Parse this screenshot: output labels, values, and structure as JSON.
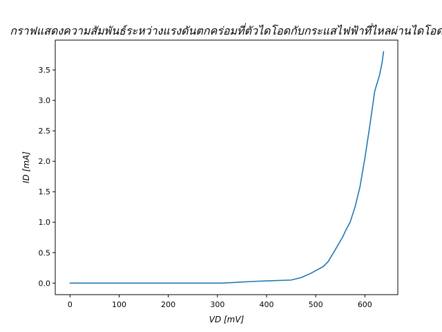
{
  "chart_data": {
    "type": "line",
    "title": "กราฟแสดงความสัมพันธ์ระหว่างแรงดันตกคร่อมที่ตัวไดโอดกับกระแสไฟฟ้าที่ไหลผ่านไดโอด",
    "xlabel": "VD [mV]",
    "ylabel": "ID [mA]",
    "xlim": [
      -30,
      667
    ],
    "ylim": [
      -0.19,
      3.99
    ],
    "xticks": [
      0,
      100,
      200,
      300,
      400,
      500,
      600
    ],
    "xtick_labels": [
      "0",
      "100",
      "200",
      "300",
      "400",
      "500",
      "600"
    ],
    "yticks": [
      0.0,
      0.5,
      1.0,
      1.5,
      2.0,
      2.5,
      3.0,
      3.5
    ],
    "ytick_labels": [
      "0.0",
      "0.5",
      "1.0",
      "1.5",
      "2.0",
      "2.5",
      "3.0",
      "3.5"
    ],
    "grid": false,
    "color": "#1f77b4",
    "series": [
      {
        "x": [
          0,
          100,
          200,
          310,
          380,
          450,
          470,
          490,
          515,
          525,
          540,
          555,
          562,
          570,
          580,
          590,
          600,
          610,
          620,
          630,
          635,
          638
        ],
        "y": [
          0.0,
          0.0,
          0.0,
          0.0,
          0.03,
          0.05,
          0.09,
          0.16,
          0.27,
          0.35,
          0.55,
          0.76,
          0.88,
          1.0,
          1.25,
          1.58,
          2.05,
          2.58,
          3.15,
          3.42,
          3.62,
          3.8
        ]
      }
    ]
  }
}
